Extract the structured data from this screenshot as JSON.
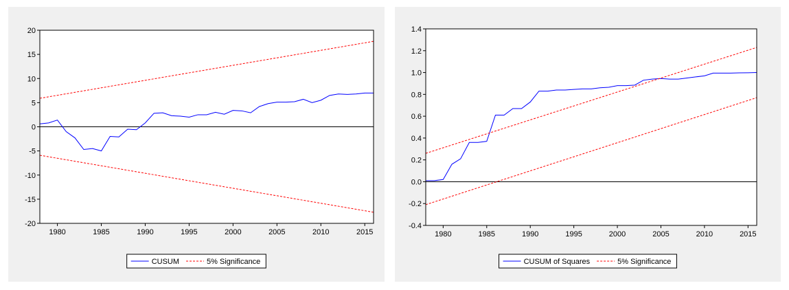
{
  "chart_data": [
    {
      "type": "line",
      "xlim": [
        1978,
        2016
      ],
      "xticks": [
        1980,
        1985,
        1990,
        1995,
        2000,
        2005,
        2010,
        2015
      ],
      "ylim": [
        -20,
        20
      ],
      "yticks": [
        -20,
        -15,
        -10,
        -5,
        0,
        5,
        10,
        15,
        20
      ],
      "hline": 0,
      "series": [
        {
          "name": "CUSUM",
          "color": "#0000ff",
          "x": [
            1978,
            1979,
            1980,
            1981,
            1982,
            1983,
            1984,
            1985,
            1986,
            1987,
            1988,
            1989,
            1990,
            1991,
            1992,
            1993,
            1994,
            1995,
            1996,
            1997,
            1998,
            1999,
            2000,
            2001,
            2002,
            2003,
            2004,
            2005,
            2006,
            2007,
            2008,
            2009,
            2010,
            2011,
            2012,
            2013,
            2014,
            2015,
            2016
          ],
          "values": [
            0.6,
            0.8,
            1.4,
            -1.0,
            -2.3,
            -4.7,
            -4.5,
            -5.0,
            -2.0,
            -2.1,
            -0.5,
            -0.6,
            0.8,
            2.8,
            2.9,
            2.3,
            2.2,
            2.0,
            2.5,
            2.5,
            3.0,
            2.6,
            3.4,
            3.3,
            2.9,
            4.2,
            4.8,
            5.1,
            5.1,
            5.2,
            5.7,
            5.0,
            5.5,
            6.5,
            6.8,
            6.7,
            6.8,
            7.0,
            7.0
          ]
        },
        {
          "name": "5% Significance",
          "color": "#ff0000",
          "dashed": true,
          "x": [
            1978,
            2016
          ],
          "upper": [
            5.9,
            17.7
          ],
          "lower": [
            -5.9,
            -17.7
          ]
        }
      ]
    },
    {
      "type": "line",
      "xlim": [
        1978,
        2016
      ],
      "xticks": [
        1980,
        1985,
        1990,
        1995,
        2000,
        2005,
        2010,
        2015
      ],
      "ylim": [
        -0.4,
        1.4
      ],
      "yticks": [
        -0.4,
        -0.2,
        {
          "value": 0,
          "label": "0.0"
        },
        0.2,
        0.4,
        0.6,
        0.8,
        {
          "value": 1,
          "label": "1.0"
        },
        1.2,
        1.4
      ],
      "hline": 0,
      "series": [
        {
          "name": "CUSUM of Squares",
          "color": "#0000ff",
          "x": [
            1978,
            1979,
            1980,
            1981,
            1982,
            1983,
            1984,
            1985,
            1986,
            1987,
            1988,
            1989,
            1990,
            1991,
            1992,
            1993,
            1994,
            1995,
            1996,
            1997,
            1998,
            1999,
            2000,
            2001,
            2002,
            2003,
            2004,
            2005,
            2006,
            2007,
            2008,
            2009,
            2010,
            2011,
            2012,
            2013,
            2014,
            2015,
            2016
          ],
          "values": [
            0.01,
            0.01,
            0.02,
            0.16,
            0.21,
            0.36,
            0.36,
            0.37,
            0.61,
            0.61,
            0.67,
            0.67,
            0.73,
            0.83,
            0.83,
            0.84,
            0.84,
            0.845,
            0.85,
            0.85,
            0.86,
            0.865,
            0.88,
            0.88,
            0.885,
            0.93,
            0.94,
            0.945,
            0.94,
            0.94,
            0.95,
            0.96,
            0.97,
            0.995,
            0.995,
            0.995,
            0.997,
            0.998,
            1.0
          ]
        },
        {
          "name": "5% Significance",
          "color": "#ff0000",
          "dashed": true,
          "x": [
            1978,
            2016
          ],
          "upper": [
            0.26,
            1.23
          ],
          "lower": [
            -0.21,
            0.77
          ]
        }
      ]
    }
  ]
}
